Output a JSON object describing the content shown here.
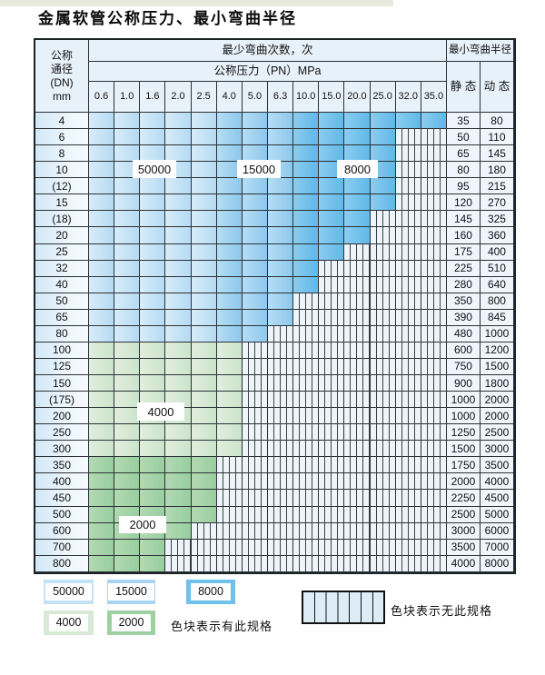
{
  "title": "金属软管公称压力、最小弯曲半径",
  "table": {
    "header": {
      "dn_lines": [
        "公称",
        "通径",
        "(DN)",
        "mm"
      ],
      "cycles_title": "最少弯曲次数，次",
      "pressure_title": "公称压力（PN）MPa",
      "radius_title": "最小弯曲半径",
      "static_label": "静 态",
      "dynamic_label": "动 态"
    },
    "pressures": [
      "0.6",
      "1.0",
      "1.6",
      "2.0",
      "2.5",
      "4.0",
      "5.0",
      "6.3",
      "10.0",
      "15.0",
      "20.0",
      "25.0",
      "32.0",
      "35.0"
    ]
  },
  "overlays": [
    {
      "text": "50000"
    },
    {
      "text": "15000"
    },
    {
      "text": "8000"
    },
    {
      "text": "4000"
    },
    {
      "text": "2000"
    }
  ],
  "legend": {
    "items": [
      {
        "label": "50000",
        "color": "#c3e2f5"
      },
      {
        "label": "15000",
        "color": "#a6d6f2"
      },
      {
        "label": "8000",
        "color": "#6fc0ea"
      },
      {
        "label": "4000",
        "color": "#d7ead6"
      },
      {
        "label": "2000",
        "color": "#9fd0a4"
      }
    ],
    "has_spec_text": "色块表示有此规格",
    "no_spec_text": "色块表示无此规格"
  },
  "colors": {
    "cycles_50000": "#c3e2f5",
    "cycles_15000": "#a6d6f2",
    "cycles_8000": "#6fc0ea",
    "cycles_4000": "#d7ead6",
    "cycles_2000": "#9fd0a4",
    "no_spec_cell": "#edf4fa",
    "header_bg": "#e7f1f9",
    "grid_line": "#2b3236"
  },
  "chart_data": {
    "type": "table",
    "title": "金属软管公称压力、最小弯曲半径",
    "columns": [
      "公称通径(DN) mm",
      "0.6",
      "1.0",
      "1.6",
      "2.0",
      "2.5",
      "4.0",
      "5.0",
      "6.3",
      "10.0",
      "15.0",
      "20.0",
      "25.0",
      "32.0",
      "35.0",
      "静态",
      "动态"
    ],
    "cycle_regions": [
      {
        "cycles": "50000",
        "applies": "blue rows, PN 0.6–2.5"
      },
      {
        "cycles": "15000",
        "applies": "blue rows, PN 4.0–6.3"
      },
      {
        "cycles": "8000",
        "applies": "blue rows, PN 10.0–35.0"
      },
      {
        "cycles": "4000",
        "applies": "green rows DN 100–300"
      },
      {
        "cycles": "2000",
        "applies": "green rows DN 350–800"
      }
    ],
    "rows": [
      {
        "dn": "4",
        "band": "blue",
        "colored_through_pn": "35.0",
        "static": "35",
        "dynamic": "80"
      },
      {
        "dn": "6",
        "band": "blue",
        "colored_through_pn": "25.0",
        "static": "50",
        "dynamic": "110"
      },
      {
        "dn": "8",
        "band": "blue",
        "colored_through_pn": "25.0",
        "static": "65",
        "dynamic": "145"
      },
      {
        "dn": "10",
        "band": "blue",
        "colored_through_pn": "25.0",
        "static": "80",
        "dynamic": "180"
      },
      {
        "dn": "(12)",
        "band": "blue",
        "colored_through_pn": "25.0",
        "static": "95",
        "dynamic": "215"
      },
      {
        "dn": "15",
        "band": "blue",
        "colored_through_pn": "25.0",
        "static": "120",
        "dynamic": "270"
      },
      {
        "dn": "(18)",
        "band": "blue",
        "colored_through_pn": "20.0",
        "static": "145",
        "dynamic": "325"
      },
      {
        "dn": "20",
        "band": "blue",
        "colored_through_pn": "20.0",
        "static": "160",
        "dynamic": "360"
      },
      {
        "dn": "25",
        "band": "blue",
        "colored_through_pn": "15.0",
        "static": "175",
        "dynamic": "400"
      },
      {
        "dn": "32",
        "band": "blue",
        "colored_through_pn": "10.0",
        "static": "225",
        "dynamic": "510"
      },
      {
        "dn": "40",
        "band": "blue",
        "colored_through_pn": "10.0",
        "static": "280",
        "dynamic": "640"
      },
      {
        "dn": "50",
        "band": "blue",
        "colored_through_pn": "6.3",
        "static": "350",
        "dynamic": "800"
      },
      {
        "dn": "65",
        "band": "blue",
        "colored_through_pn": "6.3",
        "static": "390",
        "dynamic": "845"
      },
      {
        "dn": "80",
        "band": "blue",
        "colored_through_pn": "5.0",
        "static": "480",
        "dynamic": "1000"
      },
      {
        "dn": "100",
        "band": "green4",
        "colored_through_pn": "4.0",
        "static": "600",
        "dynamic": "1200"
      },
      {
        "dn": "125",
        "band": "green4",
        "colored_through_pn": "4.0",
        "static": "750",
        "dynamic": "1500"
      },
      {
        "dn": "150",
        "band": "green4",
        "colored_through_pn": "4.0",
        "static": "900",
        "dynamic": "1800"
      },
      {
        "dn": "(175)",
        "band": "green4",
        "colored_through_pn": "4.0",
        "static": "1000",
        "dynamic": "2000"
      },
      {
        "dn": "200",
        "band": "green4",
        "colored_through_pn": "4.0",
        "static": "1000",
        "dynamic": "2000"
      },
      {
        "dn": "250",
        "band": "green4",
        "colored_through_pn": "4.0",
        "static": "1250",
        "dynamic": "2500"
      },
      {
        "dn": "300",
        "band": "green4",
        "colored_through_pn": "4.0",
        "static": "1500",
        "dynamic": "3000"
      },
      {
        "dn": "350",
        "band": "green2",
        "colored_through_pn": "2.5",
        "static": "1750",
        "dynamic": "3500"
      },
      {
        "dn": "400",
        "band": "green2",
        "colored_through_pn": "2.5",
        "static": "2000",
        "dynamic": "4000"
      },
      {
        "dn": "450",
        "band": "green2",
        "colored_through_pn": "2.5",
        "static": "2250",
        "dynamic": "4500"
      },
      {
        "dn": "500",
        "band": "green2",
        "colored_through_pn": "2.5",
        "static": "2500",
        "dynamic": "5000"
      },
      {
        "dn": "600",
        "band": "green2",
        "colored_through_pn": "2.0",
        "static": "3000",
        "dynamic": "6000"
      },
      {
        "dn": "700",
        "band": "green2",
        "colored_through_pn": "1.6",
        "static": "3500",
        "dynamic": "7000"
      },
      {
        "dn": "800",
        "band": "green2",
        "colored_through_pn": "1.6",
        "static": "4000",
        "dynamic": "8000"
      }
    ]
  }
}
